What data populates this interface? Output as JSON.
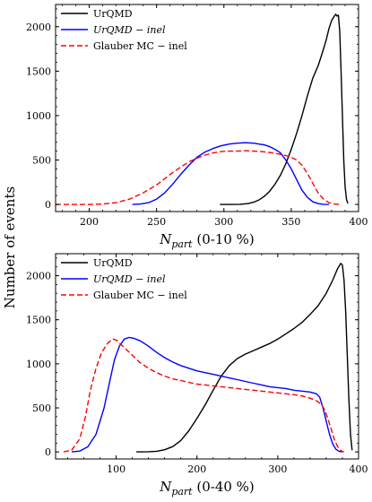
{
  "ylabel_shared": "Number of events",
  "chart_data": [
    {
      "type": "line",
      "xlabel_var": "N",
      "xlabel_sub": "part",
      "xlabel_rest": " (0-10 %)",
      "xlim": [
        175,
        400
      ],
      "ylim": [
        -80,
        2250
      ],
      "xticks": [
        200,
        250,
        300,
        350,
        400
      ],
      "yticks": [
        0,
        500,
        1000,
        1500,
        2000
      ],
      "legend_position": "top-left",
      "series": [
        {
          "name": "UrQMD",
          "color": "#000000",
          "dash": "solid",
          "italic": false,
          "points": [
            [
              297,
              0
            ],
            [
              305,
              0
            ],
            [
              312,
              2
            ],
            [
              318,
              10
            ],
            [
              322,
              25
            ],
            [
              326,
              50
            ],
            [
              330,
              90
            ],
            [
              334,
              150
            ],
            [
              338,
              230
            ],
            [
              342,
              330
            ],
            [
              346,
              460
            ],
            [
              350,
              620
            ],
            [
              354,
              800
            ],
            [
              358,
              1000
            ],
            [
              362,
              1220
            ],
            [
              366,
              1420
            ],
            [
              370,
              1560
            ],
            [
              373,
              1700
            ],
            [
              376,
              1850
            ],
            [
              378,
              1980
            ],
            [
              380,
              2070
            ],
            [
              382,
              2120
            ],
            [
              383,
              2140
            ],
            [
              384,
              2120
            ],
            [
              385,
              2130
            ],
            [
              386,
              1950
            ],
            [
              387,
              1500
            ],
            [
              388,
              1000
            ],
            [
              389,
              500
            ],
            [
              390,
              200
            ],
            [
              391,
              60
            ],
            [
              392,
              10
            ]
          ]
        },
        {
          "name": "UrQMD − inel",
          "color": "#0000ff",
          "dash": "solid",
          "italic": true,
          "points": [
            [
              232,
              0
            ],
            [
              238,
              5
            ],
            [
              244,
              20
            ],
            [
              250,
              60
            ],
            [
              256,
              130
            ],
            [
              262,
              230
            ],
            [
              268,
              340
            ],
            [
              274,
              440
            ],
            [
              280,
              530
            ],
            [
              286,
              590
            ],
            [
              292,
              630
            ],
            [
              298,
              660
            ],
            [
              304,
              680
            ],
            [
              310,
              690
            ],
            [
              316,
              695
            ],
            [
              322,
              690
            ],
            [
              326,
              680
            ],
            [
              330,
              670
            ],
            [
              334,
              650
            ],
            [
              338,
              620
            ],
            [
              342,
              580
            ],
            [
              346,
              500
            ],
            [
              350,
              400
            ],
            [
              354,
              280
            ],
            [
              358,
              160
            ],
            [
              362,
              80
            ],
            [
              366,
              30
            ],
            [
              370,
              10
            ],
            [
              374,
              2
            ],
            [
              378,
              0
            ]
          ]
        },
        {
          "name": "Glauber MC − inel",
          "color": "#ff0000",
          "dash": "6,3",
          "italic": false,
          "points": [
            [
              175,
              0
            ],
            [
              200,
              0
            ],
            [
              210,
              5
            ],
            [
              220,
              20
            ],
            [
              230,
              60
            ],
            [
              240,
              130
            ],
            [
              250,
              220
            ],
            [
              256,
              290
            ],
            [
              262,
              360
            ],
            [
              268,
              420
            ],
            [
              274,
              480
            ],
            [
              280,
              520
            ],
            [
              286,
              555
            ],
            [
              292,
              580
            ],
            [
              298,
              595
            ],
            [
              304,
              600
            ],
            [
              310,
              600
            ],
            [
              316,
              605
            ],
            [
              322,
              600
            ],
            [
              328,
              595
            ],
            [
              334,
              585
            ],
            [
              340,
              570
            ],
            [
              346,
              550
            ],
            [
              350,
              530
            ],
            [
              354,
              500
            ],
            [
              358,
              440
            ],
            [
              362,
              350
            ],
            [
              366,
              240
            ],
            [
              370,
              130
            ],
            [
              374,
              60
            ],
            [
              378,
              20
            ],
            [
              382,
              5
            ],
            [
              386,
              0
            ]
          ]
        }
      ]
    },
    {
      "type": "line",
      "xlabel_var": "N",
      "xlabel_sub": "part",
      "xlabel_rest": " (0-40 %)",
      "xlim": [
        25,
        400
      ],
      "ylim": [
        -80,
        2250
      ],
      "xticks": [
        100,
        200,
        300,
        400
      ],
      "yticks": [
        0,
        500,
        1000,
        1500,
        2000
      ],
      "legend_position": "top-left",
      "series": [
        {
          "name": "UrQMD",
          "color": "#000000",
          "dash": "solid",
          "italic": false,
          "points": [
            [
              125,
              0
            ],
            [
              140,
              2
            ],
            [
              150,
              8
            ],
            [
              160,
              25
            ],
            [
              170,
              60
            ],
            [
              180,
              130
            ],
            [
              190,
              240
            ],
            [
              200,
              380
            ],
            [
              210,
              530
            ],
            [
              220,
              700
            ],
            [
              230,
              860
            ],
            [
              240,
              980
            ],
            [
              250,
              1060
            ],
            [
              260,
              1110
            ],
            [
              270,
              1150
            ],
            [
              280,
              1190
            ],
            [
              290,
              1230
            ],
            [
              300,
              1280
            ],
            [
              310,
              1340
            ],
            [
              320,
              1400
            ],
            [
              330,
              1470
            ],
            [
              340,
              1560
            ],
            [
              350,
              1660
            ],
            [
              360,
              1800
            ],
            [
              368,
              1950
            ],
            [
              374,
              2080
            ],
            [
              378,
              2140
            ],
            [
              380,
              2120
            ],
            [
              382,
              1950
            ],
            [
              384,
              1600
            ],
            [
              386,
              1100
            ],
            [
              388,
              600
            ],
            [
              390,
              200
            ],
            [
              392,
              20
            ]
          ]
        },
        {
          "name": "UrQMD − inel",
          "color": "#0000ff",
          "dash": "solid",
          "italic": true,
          "points": [
            [
              45,
              0
            ],
            [
              55,
              10
            ],
            [
              65,
              60
            ],
            [
              75,
              200
            ],
            [
              85,
              500
            ],
            [
              92,
              800
            ],
            [
              98,
              1050
            ],
            [
              104,
              1200
            ],
            [
              110,
              1280
            ],
            [
              116,
              1300
            ],
            [
              122,
              1290
            ],
            [
              130,
              1260
            ],
            [
              140,
              1200
            ],
            [
              150,
              1130
            ],
            [
              160,
              1070
            ],
            [
              170,
              1020
            ],
            [
              180,
              980
            ],
            [
              190,
              950
            ],
            [
              200,
              920
            ],
            [
              210,
              900
            ],
            [
              220,
              880
            ],
            [
              230,
              860
            ],
            [
              240,
              840
            ],
            [
              250,
              820
            ],
            [
              260,
              800
            ],
            [
              270,
              780
            ],
            [
              280,
              760
            ],
            [
              290,
              740
            ],
            [
              300,
              730
            ],
            [
              310,
              720
            ],
            [
              320,
              700
            ],
            [
              330,
              690
            ],
            [
              340,
              680
            ],
            [
              348,
              660
            ],
            [
              352,
              620
            ],
            [
              356,
              500
            ],
            [
              360,
              350
            ],
            [
              364,
              200
            ],
            [
              368,
              90
            ],
            [
              372,
              30
            ],
            [
              376,
              5
            ],
            [
              380,
              0
            ]
          ]
        },
        {
          "name": "Glauber MC − inel",
          "color": "#ff0000",
          "dash": "6,3",
          "italic": false,
          "points": [
            [
              35,
              0
            ],
            [
              45,
              20
            ],
            [
              55,
              150
            ],
            [
              62,
              400
            ],
            [
              68,
              700
            ],
            [
              75,
              950
            ],
            [
              82,
              1130
            ],
            [
              90,
              1240
            ],
            [
              96,
              1280
            ],
            [
              100,
              1270
            ],
            [
              106,
              1220
            ],
            [
              114,
              1150
            ],
            [
              122,
              1080
            ],
            [
              130,
              1010
            ],
            [
              140,
              950
            ],
            [
              150,
              900
            ],
            [
              160,
              860
            ],
            [
              170,
              830
            ],
            [
              180,
              810
            ],
            [
              190,
              790
            ],
            [
              200,
              770
            ],
            [
              210,
              760
            ],
            [
              220,
              750
            ],
            [
              230,
              740
            ],
            [
              240,
              730
            ],
            [
              250,
              720
            ],
            [
              260,
              710
            ],
            [
              270,
              700
            ],
            [
              280,
              690
            ],
            [
              290,
              680
            ],
            [
              300,
              670
            ],
            [
              310,
              660
            ],
            [
              320,
              650
            ],
            [
              330,
              635
            ],
            [
              340,
              610
            ],
            [
              348,
              580
            ],
            [
              354,
              540
            ],
            [
              358,
              480
            ],
            [
              362,
              380
            ],
            [
              366,
              260
            ],
            [
              370,
              140
            ],
            [
              374,
              60
            ],
            [
              378,
              15
            ],
            [
              382,
              0
            ]
          ]
        }
      ]
    }
  ]
}
